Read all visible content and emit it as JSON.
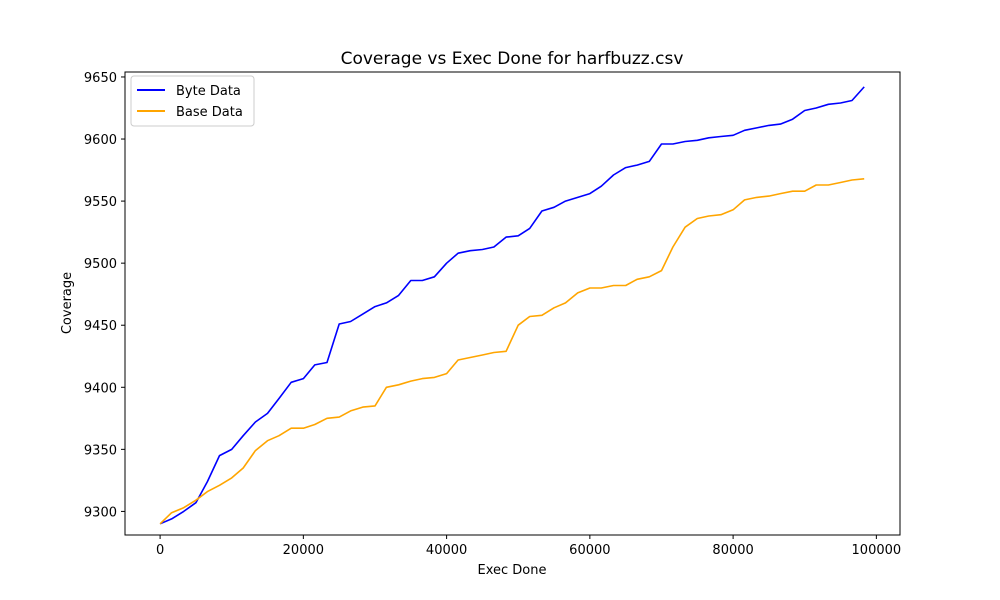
{
  "chart_data": {
    "type": "line",
    "title": "Coverage vs Exec Done for harfbuzz.csv",
    "xlabel": "Exec Done",
    "ylabel": "Coverage",
    "xlim": [
      -4900,
      103300
    ],
    "ylim": [
      9281,
      9654
    ],
    "xticks": [
      0,
      20000,
      40000,
      60000,
      80000,
      100000
    ],
    "yticks": [
      9300,
      9350,
      9400,
      9450,
      9500,
      9550,
      9600,
      9650
    ],
    "grid": false,
    "legend": "top-left",
    "series": [
      {
        "name": "Byte Data",
        "color": "#0000ff",
        "x": [
          0,
          1600,
          3300,
          5000,
          6600,
          8300,
          10000,
          11600,
          13300,
          15000,
          16600,
          18300,
          20000,
          21600,
          23300,
          25000,
          26600,
          28300,
          30000,
          31600,
          33300,
          35000,
          36600,
          38300,
          40000,
          41600,
          43300,
          45000,
          46600,
          48300,
          50000,
          51600,
          53300,
          55000,
          56600,
          58300,
          60000,
          61600,
          63300,
          65000,
          66600,
          68300,
          70000,
          71600,
          73300,
          75000,
          76600,
          78300,
          80000,
          81600,
          83300,
          85000,
          86600,
          88300,
          90000,
          91600,
          93300,
          95000,
          96600,
          98300
        ],
        "values": [
          9290,
          9294,
          9300,
          9307,
          9324,
          9345,
          9350,
          9361,
          9372,
          9379,
          9391,
          9404,
          9407,
          9418,
          9420,
          9451,
          9453,
          9459,
          9465,
          9468,
          9474,
          9486,
          9486,
          9489,
          9500,
          9508,
          9510,
          9511,
          9513,
          9521,
          9522,
          9528,
          9542,
          9545,
          9550,
          9553,
          9556,
          9562,
          9571,
          9577,
          9579,
          9582,
          9596,
          9596,
          9598,
          9599,
          9601,
          9602,
          9603,
          9607,
          9609,
          9611,
          9612,
          9616,
          9623,
          9625,
          9628,
          9629,
          9631,
          9642
        ]
      },
      {
        "name": "Base Data",
        "color": "#ffa500",
        "x": [
          0,
          1600,
          3300,
          5000,
          6600,
          8300,
          10000,
          11600,
          13300,
          15000,
          16600,
          18300,
          20000,
          21600,
          23300,
          25000,
          26600,
          28300,
          30000,
          31600,
          33300,
          35000,
          36600,
          38300,
          40000,
          41600,
          43300,
          45000,
          46600,
          48300,
          50000,
          51600,
          53300,
          55000,
          56600,
          58300,
          60000,
          61600,
          63300,
          65000,
          66600,
          68300,
          70000,
          71600,
          73300,
          75000,
          76600,
          78300,
          80000,
          81600,
          83300,
          85000,
          86600,
          88300,
          90000,
          91600,
          93300,
          95000,
          96600,
          98300
        ],
        "values": [
          9290,
          9299,
          9303,
          9309,
          9316,
          9321,
          9327,
          9335,
          9349,
          9357,
          9361,
          9367,
          9367,
          9370,
          9375,
          9376,
          9381,
          9384,
          9385,
          9400,
          9402,
          9405,
          9407,
          9408,
          9411,
          9422,
          9424,
          9426,
          9428,
          9429,
          9450,
          9457,
          9458,
          9464,
          9468,
          9476,
          9480,
          9480,
          9482,
          9482,
          9487,
          9489,
          9494,
          9513,
          9529,
          9536,
          9538,
          9539,
          9543,
          9551,
          9553,
          9554,
          9556,
          9558,
          9558,
          9563,
          9563,
          9565,
          9567,
          9568
        ]
      }
    ]
  }
}
